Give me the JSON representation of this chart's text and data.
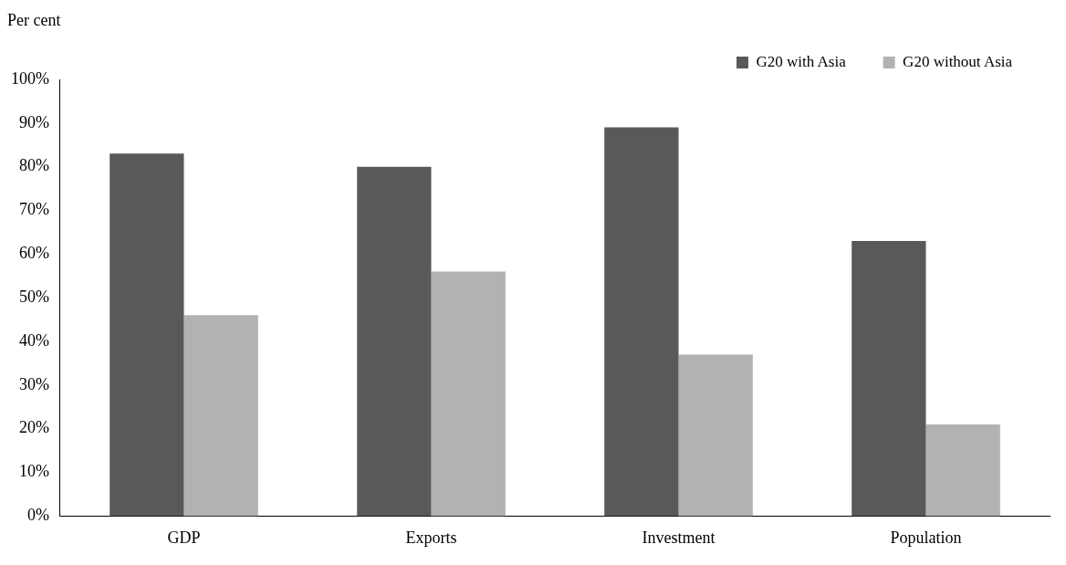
{
  "chart_data": {
    "type": "bar",
    "ylabel": "Per cent",
    "categories": [
      "GDP",
      "Exports",
      "Investment",
      "Population"
    ],
    "series": [
      {
        "name": "G20 with Asia",
        "color": "#595959",
        "values": [
          83,
          80,
          89,
          63
        ]
      },
      {
        "name": "G20 without Asia",
        "color": "#b2b2b2",
        "values": [
          46,
          56,
          37,
          21
        ]
      }
    ],
    "ylim": [
      0,
      100
    ],
    "yticks": [
      {
        "value": 0,
        "label": "0%"
      },
      {
        "value": 10,
        "label": "10%"
      },
      {
        "value": 20,
        "label": "20%"
      },
      {
        "value": 30,
        "label": "30%"
      },
      {
        "value": 40,
        "label": "40%"
      },
      {
        "value": 50,
        "label": "50%"
      },
      {
        "value": 60,
        "label": "60%"
      },
      {
        "value": 70,
        "label": "70%"
      },
      {
        "value": 80,
        "label": "80%"
      },
      {
        "value": 90,
        "label": "90%"
      },
      {
        "value": 100,
        "label": "100%"
      }
    ],
    "grid": false,
    "legend": "top right"
  }
}
